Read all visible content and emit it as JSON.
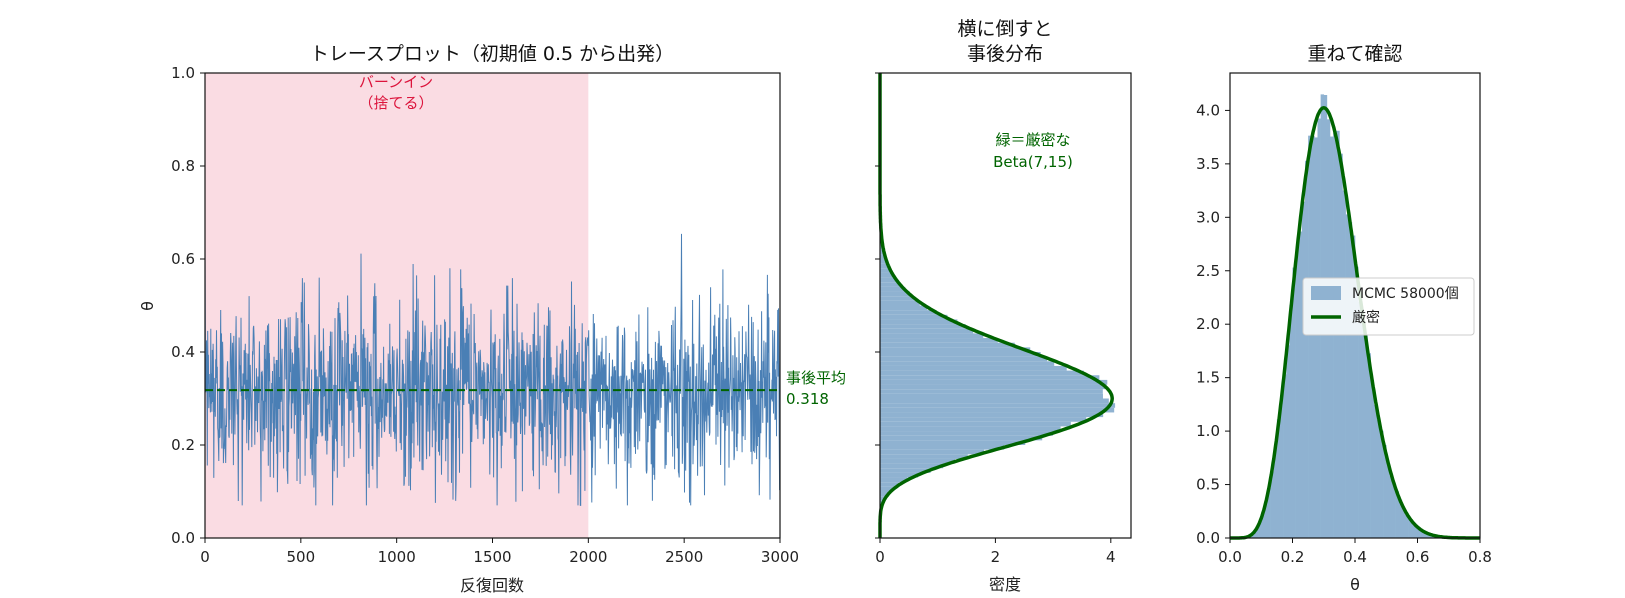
{
  "colors": {
    "trace": "#4a7fb5",
    "burn_in_fill": "#fadce3",
    "burn_in_text": "#dc143c",
    "exact": "#006400",
    "hist_fill": "#8fb2d1"
  },
  "chart_data": [
    {
      "type": "line",
      "title": "トレースプロット（初期値 0.5 から出発）",
      "xlabel": "反復回数",
      "ylabel": "θ",
      "xlim": [
        0,
        3000
      ],
      "ylim": [
        0,
        1.0
      ],
      "xticks": [
        "0",
        "500",
        "1000",
        "1500",
        "2000",
        "2500",
        "3000"
      ],
      "yticks": [
        "0.0",
        "0.2",
        "0.4",
        "0.6",
        "0.8",
        "1.0"
      ],
      "grid": false,
      "burn_in": {
        "start": 0,
        "end": 2000,
        "label_line1": "バーンイン",
        "label_line2": "（捨てる）"
      },
      "posterior_mean": {
        "value": 0.318,
        "label_line1": "事後平均",
        "label_line2": "0.318"
      },
      "series": [
        {
          "iterations": 3000,
          "x_step": 1,
          "mean": 0.318,
          "min": 0.07,
          "max": 0.71,
          "distribution": "Beta(7,15)"
        }
      ]
    },
    {
      "type": "bar",
      "orientation": "horizontal",
      "title_line1": "横に倒すと",
      "title_line2": "事後分布",
      "xlabel": "密度",
      "xlim": [
        0,
        4.35
      ],
      "ylim": [
        0,
        1.0
      ],
      "xticks": [
        "0",
        "2",
        "4"
      ],
      "annotation_line1": "緑＝厳密な",
      "annotation_line2": "Beta(7,15)",
      "curve": {
        "distribution": "Beta",
        "a": 7,
        "b": 15
      }
    },
    {
      "type": "bar",
      "title": "重ねて確認",
      "xlabel": "θ",
      "xlim": [
        0,
        0.8
      ],
      "ylim": [
        0,
        4.35
      ],
      "xticks": [
        "0.0",
        "0.2",
        "0.4",
        "0.6",
        "0.8"
      ],
      "yticks": [
        "0.0",
        "0.5",
        "1.0",
        "1.5",
        "2.0",
        "2.5",
        "3.0",
        "3.5",
        "4.0"
      ],
      "legend_position": "center-right",
      "series": [
        {
          "name": "MCMC 58000個",
          "kind": "histogram",
          "bin_width": 0.01
        },
        {
          "name": "厳密",
          "kind": "line",
          "distribution": "Beta",
          "a": 7,
          "b": 15
        }
      ]
    }
  ]
}
